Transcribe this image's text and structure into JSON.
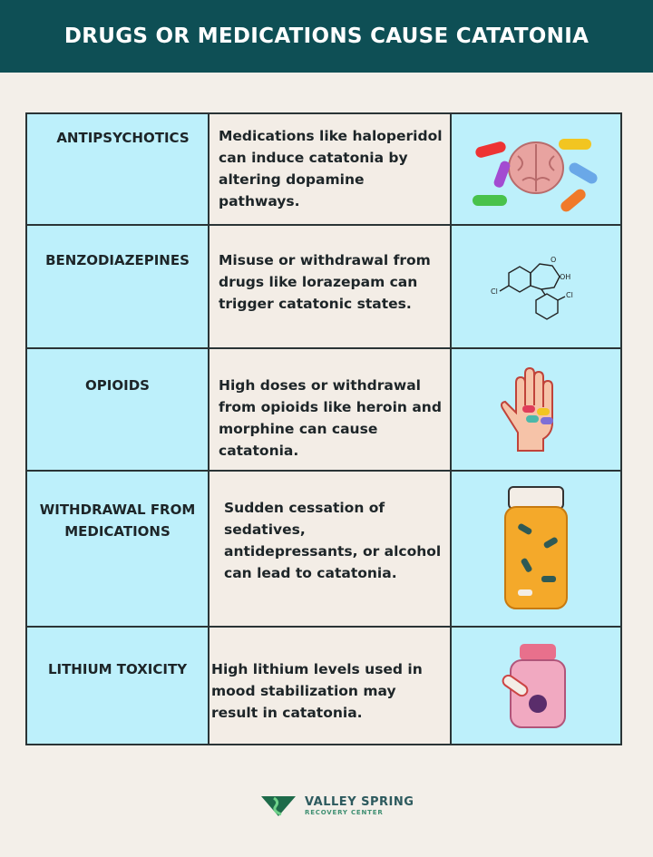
{
  "header": {
    "title": "DRUGS OR MEDICATIONS CAUSE CATATONIA"
  },
  "rows": [
    {
      "category": "ANTIPSYCHOTICS",
      "description": "Medications like haloperidol can induce catatonia by altering dopamine pathways.",
      "icon": "brain-pills-icon"
    },
    {
      "category": "BENZODIAZEPINES",
      "description": "Misuse or withdrawal from drugs like lorazepam can trigger catatonic states.",
      "icon": "lorazepam-molecule-icon"
    },
    {
      "category": "OPIOIDS",
      "description": "High doses or withdrawal from opioids like heroin and morphine can cause catatonia.",
      "icon": "hand-pills-icon"
    },
    {
      "category": "WITHDRAWAL FROM MEDICATIONS",
      "description": "Sudden cessation of sedatives, antidepressants, or alcohol can lead to catatonia.",
      "icon": "pill-bottle-icon"
    },
    {
      "category": "LITHIUM TOXICITY",
      "description": "High lithium levels used in mood stabilization may result in catatonia.",
      "icon": "poison-bottle-icon"
    }
  ],
  "logo": {
    "name": "VALLEY SPRING",
    "subtitle": "RECOVERY CENTER"
  },
  "colors": {
    "header": "#0e4f55",
    "category_cell": "#bdf0fb",
    "description_cell": "#f3ede6",
    "background": "#f3efe9"
  }
}
